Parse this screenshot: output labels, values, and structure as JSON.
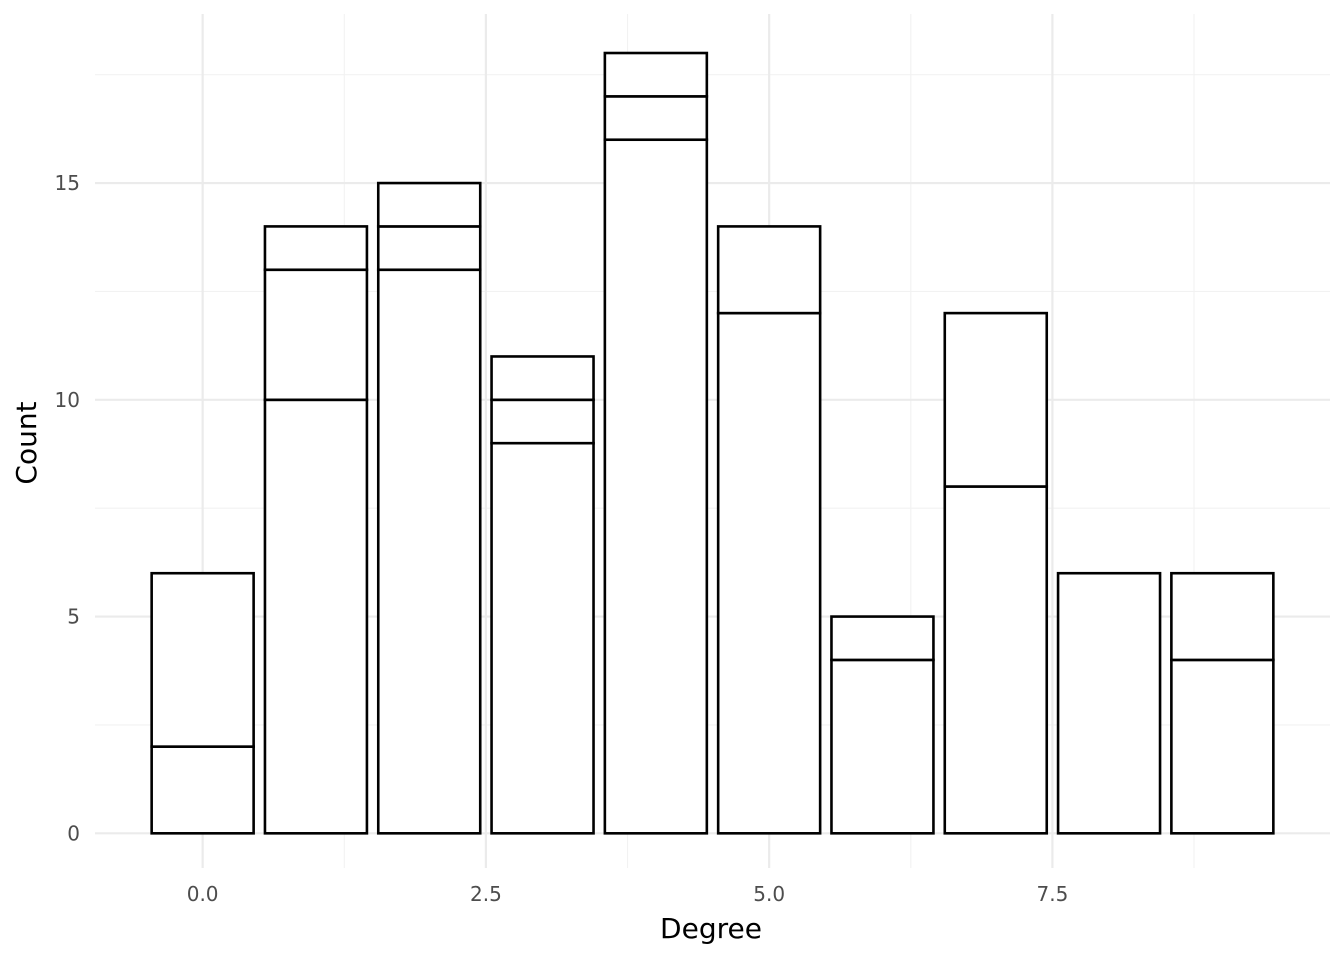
{
  "chart_data": {
    "type": "bar",
    "stacked": true,
    "xlabel": "Degree",
    "ylabel": "Count",
    "xlim": [
      -0.95,
      9.95
    ],
    "ylim": [
      -0.8,
      18.9
    ],
    "x_ticks": [
      {
        "value": 0.0,
        "label": "0.0"
      },
      {
        "value": 2.5,
        "label": "2.5"
      },
      {
        "value": 5.0,
        "label": "5.0"
      },
      {
        "value": 7.5,
        "label": "7.5"
      }
    ],
    "x_minor": [
      1.25,
      3.75,
      6.25,
      8.75
    ],
    "y_ticks": [
      {
        "value": 0,
        "label": "0"
      },
      {
        "value": 5,
        "label": "5"
      },
      {
        "value": 10,
        "label": "10"
      },
      {
        "value": 15,
        "label": "15"
      }
    ],
    "y_minor": [
      2.5,
      7.5,
      12.5,
      17.5
    ],
    "bar_width": 0.9,
    "grid": true,
    "fill_color": "#ffffff",
    "outline_color": "#000000",
    "bars": [
      {
        "x": 0,
        "segments": [
          2,
          4
        ]
      },
      {
        "x": 1,
        "segments": [
          10,
          3,
          1
        ]
      },
      {
        "x": 2,
        "segments": [
          13,
          1,
          1
        ]
      },
      {
        "x": 3,
        "segments": [
          9,
          1,
          1
        ]
      },
      {
        "x": 4,
        "segments": [
          16,
          1,
          1
        ]
      },
      {
        "x": 5,
        "segments": [
          12,
          2
        ]
      },
      {
        "x": 6,
        "segments": [
          4,
          1
        ]
      },
      {
        "x": 7,
        "segments": [
          8,
          4
        ]
      },
      {
        "x": 8,
        "segments": [
          6
        ]
      },
      {
        "x": 9,
        "segments": [
          4,
          2
        ]
      }
    ]
  }
}
